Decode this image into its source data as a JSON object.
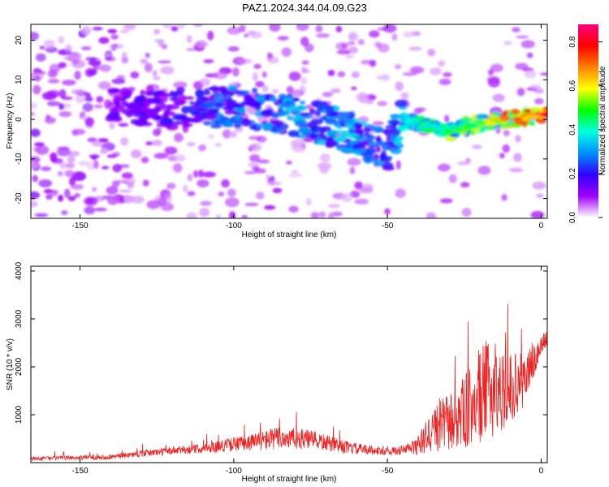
{
  "title": "PAZ1.2024.344.04.09.G23",
  "colors": {
    "snr_line": "#ee2222",
    "colormap": [
      "#ffffff",
      "#a000ff",
      "#3000ff",
      "#0090ff",
      "#00ffe0",
      "#00ff00",
      "#ffff00",
      "#ff8000",
      "#ff0000",
      "#ff0080"
    ]
  },
  "chart_data": [
    {
      "type": "heatmap",
      "xlabel": "Height of straight line (km)",
      "ylabel": "Frequency (Hz)",
      "xlim": [
        -166,
        2
      ],
      "ylim": [
        -25,
        24
      ],
      "xticks": [
        -150,
        -100,
        -50,
        0
      ],
      "yticks": [
        -20,
        -10,
        0,
        10,
        20
      ],
      "colorbar": {
        "label": "Normalized spectral amplitude",
        "range": [
          0.0,
          0.88
        ],
        "ticks": [
          0.0,
          0.2,
          0.4,
          0.6,
          0.8
        ]
      },
      "ridge": {
        "description_points_x": [
          -140,
          -120,
          -100,
          -80,
          -60,
          -50,
          -45,
          -40,
          -30,
          -20,
          -10,
          0
        ],
        "freq_y": [
          3,
          3,
          3,
          1,
          -4,
          -8,
          0,
          -1,
          -3,
          -1,
          0,
          1
        ],
        "amplitude": [
          0.15,
          0.2,
          0.3,
          0.35,
          0.35,
          0.25,
          0.4,
          0.45,
          0.55,
          0.6,
          0.75,
          0.85
        ]
      }
    },
    {
      "type": "line",
      "xlabel": "Height of straight line (km)",
      "ylabel": "SNR (10 * v/v)",
      "xlim": [
        -166,
        2
      ],
      "ylim": [
        0,
        4100
      ],
      "xticks": [
        -150,
        -100,
        -50,
        0
      ],
      "yticks": [
        1000,
        2000,
        3000,
        4000
      ],
      "envelope": {
        "x": [
          -166,
          -140,
          -125,
          -110,
          -95,
          -85,
          -75,
          -62,
          -50,
          -45,
          -40,
          -35,
          -28,
          -22,
          -18,
          -12,
          -6,
          2
        ],
        "mean": [
          80,
          120,
          220,
          300,
          420,
          520,
          480,
          300,
          230,
          260,
          350,
          700,
          900,
          1200,
          1500,
          1500,
          1700,
          2650
        ],
        "amplitude": [
          80,
          100,
          150,
          200,
          350,
          500,
          400,
          250,
          150,
          200,
          400,
          1000,
          1300,
          1800,
          2100,
          1600,
          1200,
          350
        ]
      }
    }
  ]
}
